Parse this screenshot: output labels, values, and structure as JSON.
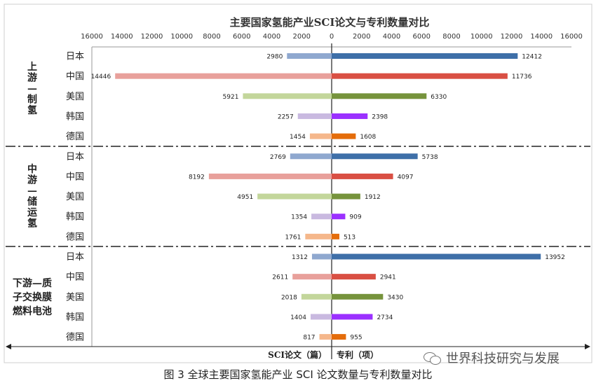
{
  "chart_data": {
    "type": "bar",
    "title": "主要国家氢能产业SCI论文与专利数量对比",
    "left_label": "SCI论文（篇）",
    "right_label": "专利（项）",
    "x_ticks": [
      "16000",
      "14000",
      "12000",
      "10000",
      "8000",
      "6000",
      "4000",
      "2000",
      "0",
      "2000",
      "4000",
      "6000",
      "8000",
      "10000",
      "12000",
      "14000",
      "16000"
    ],
    "xlim": [
      -16000,
      16000
    ],
    "countries": [
      "日本",
      "中国",
      "美国",
      "韩国",
      "德国"
    ],
    "colors": {
      "paper": [
        "#8fa8cf",
        "#e8a09b",
        "#c3d69b",
        "#c9b9e0",
        "#f5b78b"
      ],
      "patent": [
        "#3e6fa8",
        "#d94f43",
        "#76933c",
        "#9b30ff",
        "#e46c0a"
      ]
    },
    "groups": [
      {
        "label": "上游—制氢",
        "sci": [
          2980,
          14446,
          5921,
          2257,
          1454
        ],
        "patents": [
          12412,
          11736,
          6330,
          2398,
          1608
        ]
      },
      {
        "label": "中游—储运氢",
        "sci": [
          2769,
          8192,
          4951,
          1354,
          1761
        ],
        "patents": [
          5738,
          4097,
          1912,
          909,
          513
        ]
      },
      {
        "label": "下游—质子交换膜燃料电池",
        "sci": [
          1312,
          2611,
          2018,
          1404,
          817
        ],
        "patents": [
          13952,
          2941,
          3430,
          2734,
          955
        ]
      }
    ],
    "group_label_lines": [
      [
        "上",
        "游",
        "—",
        "制",
        "氢"
      ],
      [
        "中",
        "游",
        "—",
        "储",
        "运",
        "氢"
      ],
      [
        "下游—质",
        "子交换膜",
        "燃料电池"
      ]
    ]
  },
  "caption": "图 3  全球主要国家氢能产业 SCI 论文数量与专利数量对比",
  "watermark": "世界科技研究与发展",
  "watermark_icon": "wechat-icon"
}
